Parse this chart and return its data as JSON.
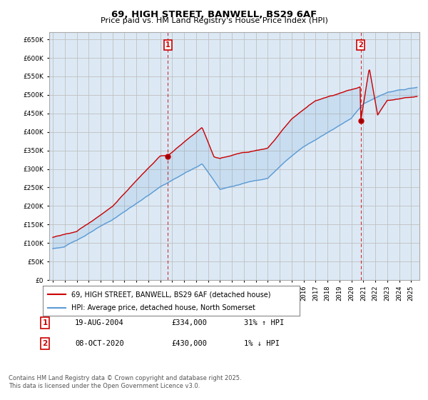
{
  "title": "69, HIGH STREET, BANWELL, BS29 6AF",
  "subtitle": "Price paid vs. HM Land Registry's House Price Index (HPI)",
  "ylabel_values": [
    0,
    50000,
    100000,
    150000,
    200000,
    250000,
    300000,
    350000,
    400000,
    450000,
    500000,
    550000,
    600000,
    650000
  ],
  "x_start_year": 1995,
  "x_end_year": 2025,
  "hpi_color": "#5b9bd5",
  "price_color": "#cc0000",
  "vline_color": "#cc0000",
  "grid_color": "#c0c0c0",
  "plot_bg_color": "#dce9f5",
  "background_color": "#ffffff",
  "legend_entry1": "69, HIGH STREET, BANWELL, BS29 6AF (detached house)",
  "legend_entry2": "HPI: Average price, detached house, North Somerset",
  "marker1_date": "19-AUG-2004",
  "marker1_price": "£334,000",
  "marker1_hpi": "31% ↑ HPI",
  "marker1_year": 2004.63,
  "marker1_value": 334000,
  "marker2_date": "08-OCT-2020",
  "marker2_price": "£430,000",
  "marker2_hpi": "1% ↓ HPI",
  "marker2_year": 2020.78,
  "marker2_value": 430000,
  "footnote": "Contains HM Land Registry data © Crown copyright and database right 2025.\nThis data is licensed under the Open Government Licence v3.0."
}
